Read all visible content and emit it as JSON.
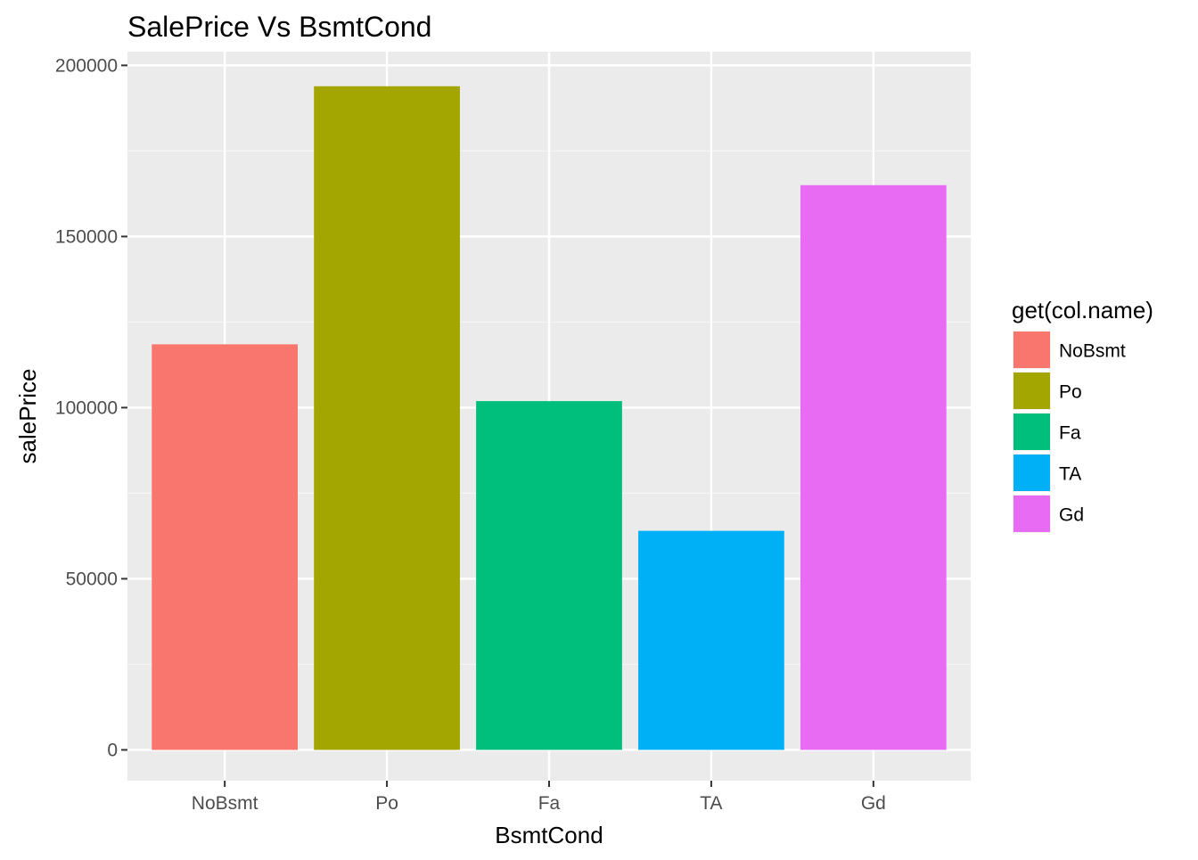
{
  "chart_data": {
    "type": "bar",
    "title": "SalePrice Vs BsmtCond",
    "xlabel": "BsmtCond",
    "ylabel": "salePrice",
    "categories": [
      "NoBsmt",
      "Po",
      "Fa",
      "TA",
      "Gd"
    ],
    "values": [
      118500,
      193900,
      101900,
      64000,
      165000
    ],
    "colors": [
      "#F8766D",
      "#A3A500",
      "#00BF7D",
      "#00B0F6",
      "#E76BF3"
    ],
    "ylim": [
      -9000,
      204000
    ],
    "yticks": [
      0,
      50000,
      100000,
      150000,
      200000
    ],
    "ytick_labels": [
      "0",
      "50000",
      "100000",
      "150000",
      "200000"
    ],
    "grid": true,
    "legend": {
      "title": "get(col.name)",
      "entries": [
        "NoBsmt",
        "Po",
        "Fa",
        "TA",
        "Gd"
      ],
      "placement": "right"
    },
    "panel_background": "#EBEBEB"
  }
}
